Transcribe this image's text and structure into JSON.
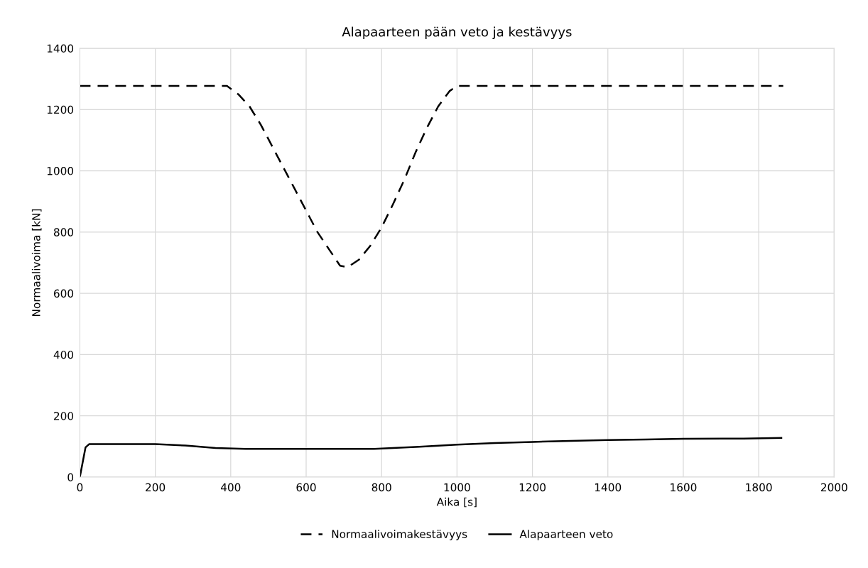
{
  "chart_data": {
    "type": "line",
    "title": "Alapaarteen pään veto ja kestävyys",
    "xlabel": "Aika [s]",
    "ylabel": "Normaalivoima [kN]",
    "xlim": [
      0,
      2000
    ],
    "xticks": [
      0,
      200,
      400,
      600,
      800,
      1000,
      1200,
      1400,
      1600,
      1800,
      2000
    ],
    "ylim": [
      0,
      1400
    ],
    "yticks": [
      0,
      200,
      400,
      600,
      800,
      1000,
      1200,
      1400
    ],
    "grid": true,
    "legend": "bottom",
    "marker": "none",
    "series": [
      {
        "name": "Normaalivoimakestävyys",
        "color": "#000000",
        "line_style": "dashed",
        "x": [
          0,
          390,
          420,
          450,
          480,
          510,
          540,
          570,
          600,
          630,
          660,
          690,
          710,
          740,
          770,
          800,
          830,
          860,
          890,
          920,
          950,
          980,
          1000,
          1865
        ],
        "values": [
          1277,
          1277,
          1250,
          1210,
          1150,
          1080,
          1010,
          940,
          870,
          800,
          745,
          690,
          685,
          710,
          755,
          815,
          890,
          970,
          1060,
          1140,
          1210,
          1260,
          1277,
          1277
        ]
      },
      {
        "name": "Alapaarteen veto",
        "color": "#000000",
        "line_style": "solid",
        "x": [
          0,
          15,
          25,
          200,
          280,
          360,
          440,
          780,
          900,
          1000,
          1100,
          1200,
          1300,
          1400,
          1500,
          1600,
          1760,
          1860
        ],
        "values": [
          0,
          97,
          108,
          108,
          103,
          95,
          92,
          92,
          99,
          106,
          111,
          115,
          118,
          121,
          123,
          125,
          126,
          128
        ]
      }
    ]
  }
}
